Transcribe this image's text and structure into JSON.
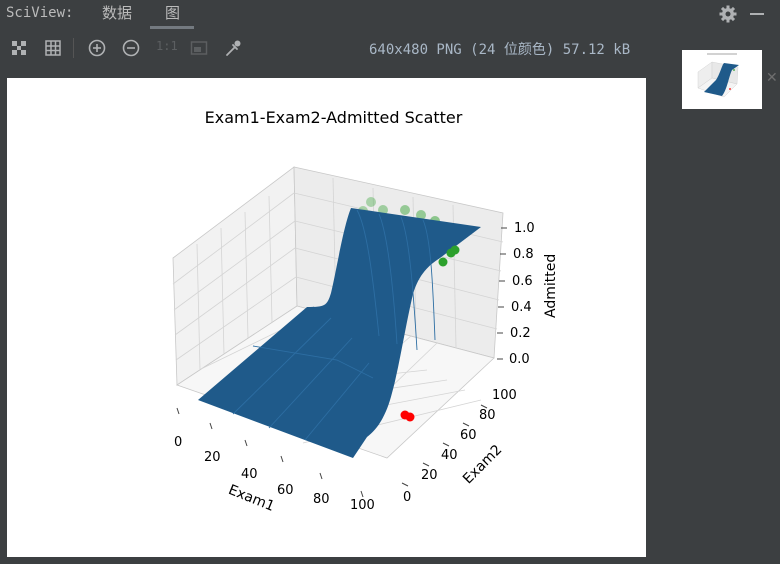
{
  "header": {
    "title": "SciView:",
    "tabs": [
      {
        "label": "数据",
        "active": false
      },
      {
        "label": "图",
        "active": true
      }
    ]
  },
  "toolbar": {
    "icons": [
      "fit-to-screen-icon",
      "grid-icon",
      "zoom-in-icon",
      "zoom-out-icon",
      "actual-size-icon",
      "background-icon",
      "color-picker-icon"
    ],
    "actual_size_label": "1:1",
    "image_info": "640x480 PNG (24 位颜色) 57.12 kB"
  },
  "colors": {
    "surface": "#1f5a8a",
    "admitted_points": "#2ca02c",
    "rejected_points": "#ff0000",
    "background": "#3c3f41"
  },
  "chart_data": {
    "type": "scatter",
    "variant": "3d-surface",
    "title": "Exam1-Exam2-Admitted Scatter",
    "xlabel": "Exam1",
    "ylabel": "Exam2",
    "zlabel": "Admitted",
    "x_ticks": [
      "0",
      "20",
      "40",
      "60",
      "80",
      "100"
    ],
    "y_ticks": [
      "0",
      "20",
      "40",
      "60",
      "80",
      "100"
    ],
    "z_ticks": [
      "0.0",
      "0.2",
      "0.4",
      "0.6",
      "0.8",
      "1.0"
    ],
    "xlim": [
      0,
      100
    ],
    "ylim": [
      0,
      100
    ],
    "zlim": [
      0,
      1
    ],
    "grid": true,
    "series": [
      {
        "color": "#2ca02c"
      },
      {
        "color": "#ff0000"
      }
    ],
    "surface": {
      "color": "#1f5a8a"
    }
  }
}
